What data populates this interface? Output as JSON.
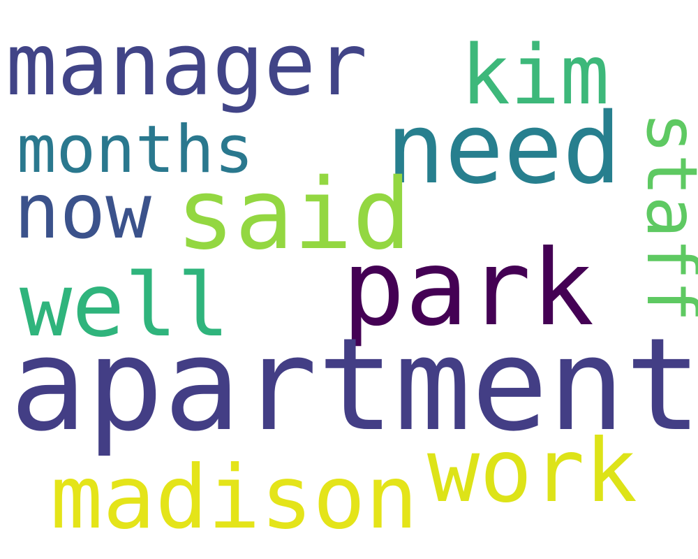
{
  "words": {
    "manager": {
      "text": "manager",
      "color": "#414487"
    },
    "kim": {
      "text": "kim",
      "color": "#3db87a"
    },
    "months": {
      "text": "months",
      "color": "#2a788e"
    },
    "need": {
      "text": "need",
      "color": "#277f8e"
    },
    "now": {
      "text": "now",
      "color": "#3b528b"
    },
    "said": {
      "text": "said",
      "color": "#93d741"
    },
    "staff": {
      "text": "staff",
      "color": "#5ec962"
    },
    "park": {
      "text": "park",
      "color": "#440154"
    },
    "well": {
      "text": "well",
      "color": "#2fb47c"
    },
    "apartment": {
      "text": "apartment",
      "color": "#433e85"
    },
    "work": {
      "text": "work",
      "color": "#dde318"
    },
    "madison": {
      "text": "madison",
      "color": "#e4e419"
    }
  }
}
